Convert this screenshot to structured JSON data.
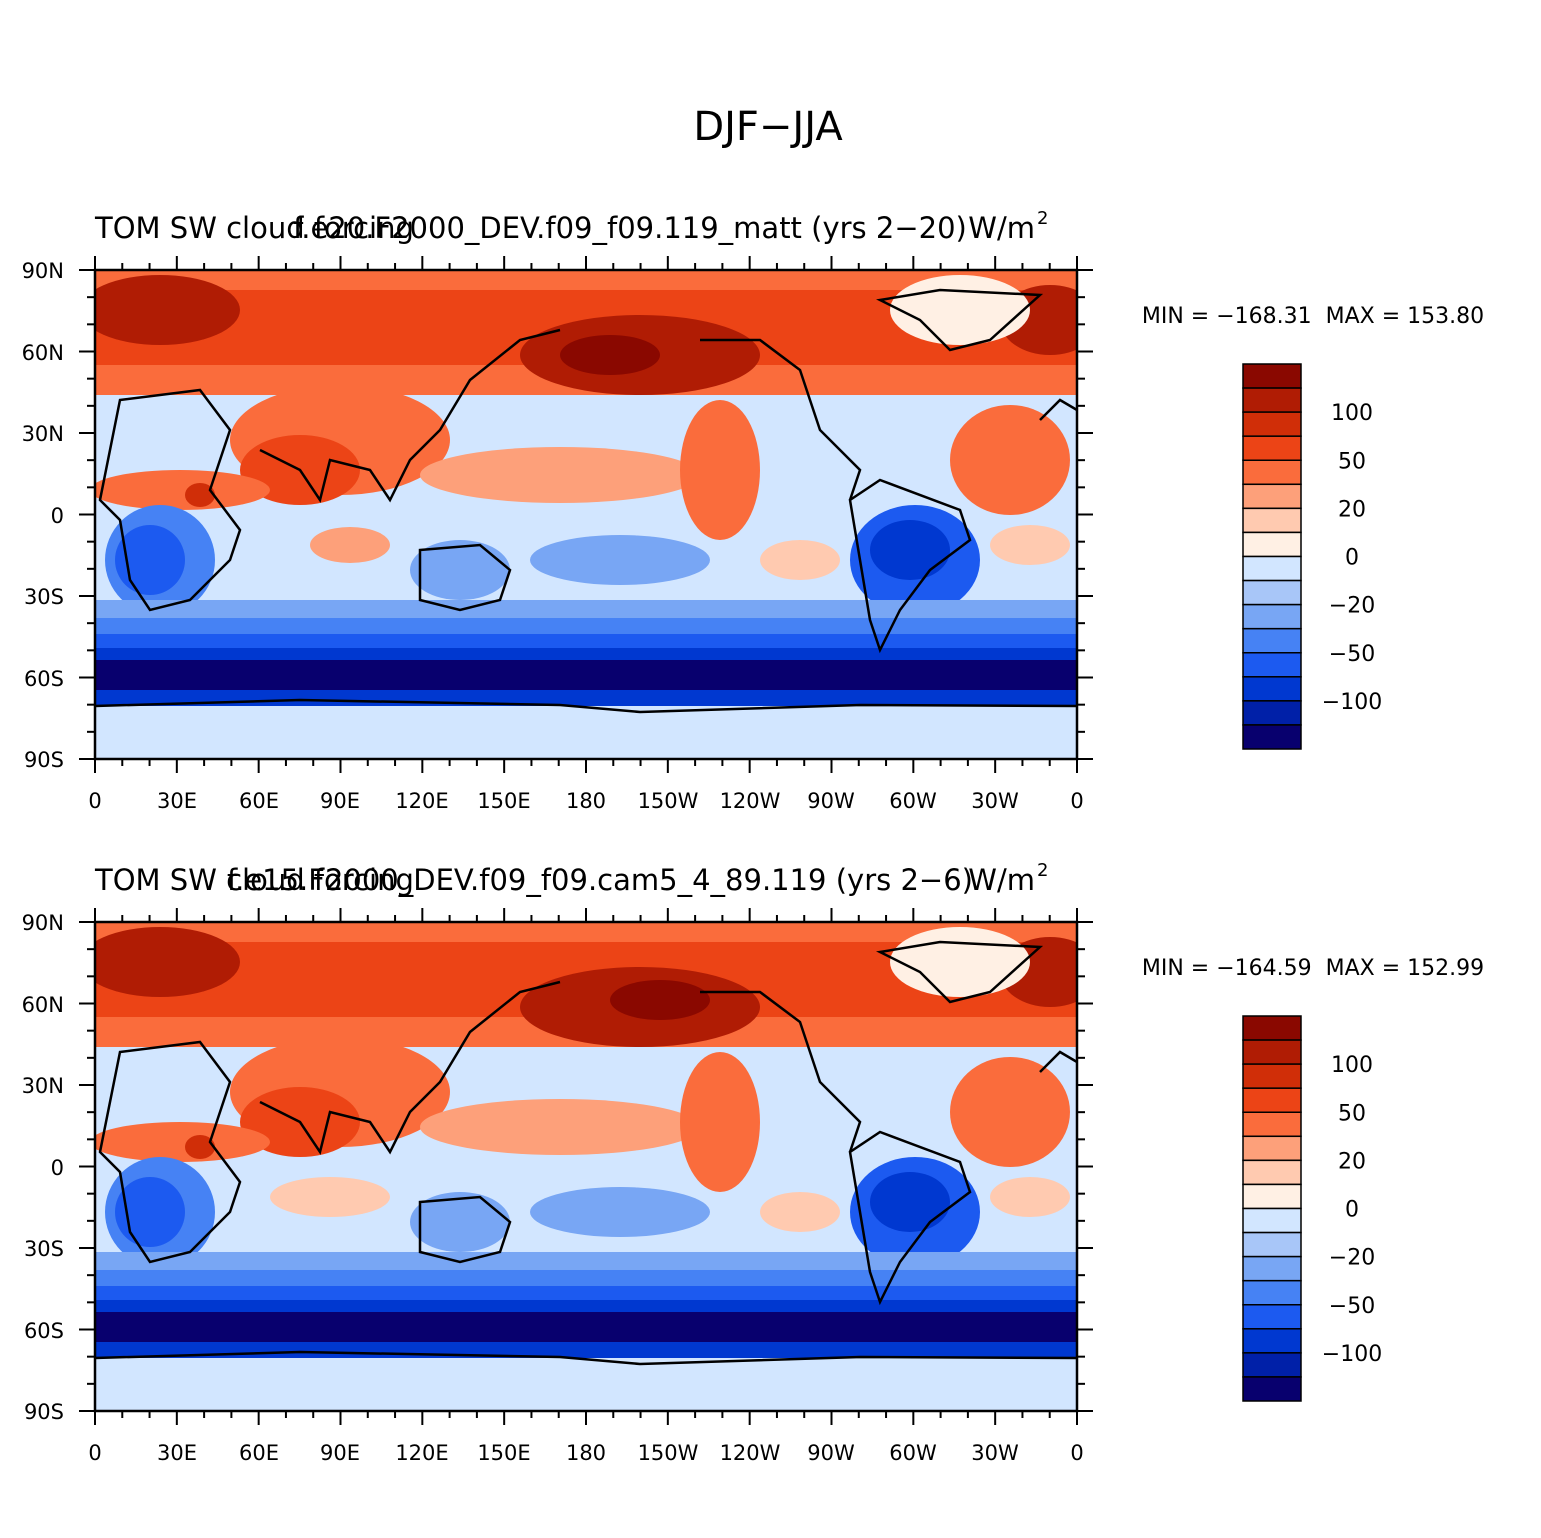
{
  "figure": {
    "title": "DJF−JJA"
  },
  "colorbar": {
    "colors": [
      "#08006e",
      "#0020a8",
      "#0038d0",
      "#1c5af0",
      "#4682f4",
      "#78a6f4",
      "#a8c6f8",
      "#d2e6ff",
      "#fff0e4",
      "#ffcab0",
      "#fda07a",
      "#fa6c3c",
      "#ec4416",
      "#d02e08",
      "#b01c04",
      "#8a0800"
    ],
    "tick_labels": [
      "100",
      "50",
      "20",
      "0",
      "−20",
      "−50",
      "−100"
    ]
  },
  "axes": {
    "lat_labels": [
      "90N",
      "60N",
      "30N",
      "0",
      "30S",
      "60S",
      "90S"
    ],
    "lon_labels": [
      "0",
      "30E",
      "60E",
      "90E",
      "120E",
      "150E",
      "180",
      "150W",
      "120W",
      "90W",
      "60W",
      "30W",
      "0"
    ]
  },
  "panels": [
    {
      "title_left": "TOM SW cloud forcing",
      "title_center": "f.e20.F2000_DEV.f09_f09.119_matt (yrs 2−20)",
      "units": "W/m",
      "units_exp": "2",
      "min_label": "MIN = −168.31",
      "max_label": "MAX = 153.80"
    },
    {
      "title_left": "TOM SW cloud forcing",
      "title_center": "f.e15.F2000_DEV.f09_f09.cam5_4_89.119 (yrs 2−6)",
      "units": "W/m",
      "units_exp": "2",
      "min_label": "MIN = −164.59",
      "max_label": "MAX = 152.99"
    }
  ]
}
